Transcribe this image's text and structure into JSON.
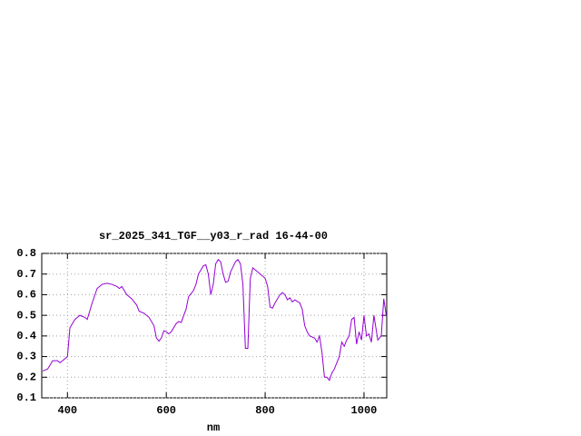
{
  "chart_data": {
    "type": "line",
    "title": "sr_2025_341_TGF__y03_r_rad 16-44-00",
    "x_label": "nm",
    "x": [
      350,
      360,
      370,
      380,
      385,
      395,
      400,
      405,
      415,
      425,
      435,
      440,
      450,
      460,
      470,
      480,
      490,
      500,
      505,
      510,
      520,
      530,
      540,
      545,
      555,
      565,
      575,
      580,
      585,
      590,
      595,
      600,
      605,
      610,
      620,
      625,
      630,
      640,
      645,
      655,
      660,
      665,
      675,
      680,
      685,
      690,
      695,
      700,
      705,
      710,
      715,
      720,
      725,
      730,
      740,
      745,
      750,
      755,
      760,
      765,
      770,
      775,
      780,
      790,
      800,
      805,
      810,
      815,
      820,
      830,
      835,
      840,
      845,
      850,
      855,
      860,
      870,
      875,
      880,
      885,
      890,
      900,
      905,
      910,
      915,
      920,
      925,
      930,
      935,
      940,
      945,
      950,
      955,
      960,
      965,
      970,
      975,
      980,
      985,
      990,
      995,
      1000,
      1005,
      1010,
      1015,
      1020,
      1028,
      1035,
      1040,
      1045
    ],
    "series": [
      {
        "name": "sr_2025_341_TGF__y03_r_rad 16-44-00",
        "color": "#9400d3",
        "values": [
          0.23,
          0.24,
          0.28,
          0.28,
          0.27,
          0.29,
          0.3,
          0.44,
          0.48,
          0.5,
          0.49,
          0.48,
          0.56,
          0.63,
          0.65,
          0.655,
          0.65,
          0.64,
          0.63,
          0.64,
          0.6,
          0.58,
          0.55,
          0.52,
          0.51,
          0.49,
          0.45,
          0.39,
          0.375,
          0.39,
          0.425,
          0.42,
          0.41,
          0.42,
          0.46,
          0.47,
          0.465,
          0.53,
          0.59,
          0.62,
          0.65,
          0.7,
          0.74,
          0.745,
          0.7,
          0.6,
          0.65,
          0.75,
          0.77,
          0.76,
          0.7,
          0.66,
          0.665,
          0.71,
          0.76,
          0.77,
          0.75,
          0.65,
          0.34,
          0.34,
          0.68,
          0.73,
          0.72,
          0.7,
          0.68,
          0.64,
          0.54,
          0.535,
          0.56,
          0.6,
          0.61,
          0.6,
          0.575,
          0.585,
          0.565,
          0.575,
          0.56,
          0.53,
          0.45,
          0.42,
          0.4,
          0.39,
          0.37,
          0.4,
          0.32,
          0.2,
          0.2,
          0.185,
          0.22,
          0.24,
          0.27,
          0.3,
          0.37,
          0.35,
          0.38,
          0.4,
          0.48,
          0.49,
          0.36,
          0.42,
          0.38,
          0.5,
          0.4,
          0.41,
          0.37,
          0.5,
          0.38,
          0.4,
          0.58,
          0.5
        ]
      }
    ],
    "xlim": [
      348,
      1046
    ],
    "ylim": [
      0.1,
      0.8
    ],
    "xticks": [
      400,
      600,
      800,
      1000
    ],
    "yticks": [
      0.1,
      0.2,
      0.3,
      0.4,
      0.5,
      0.6,
      0.7,
      0.8
    ],
    "grid": true
  }
}
